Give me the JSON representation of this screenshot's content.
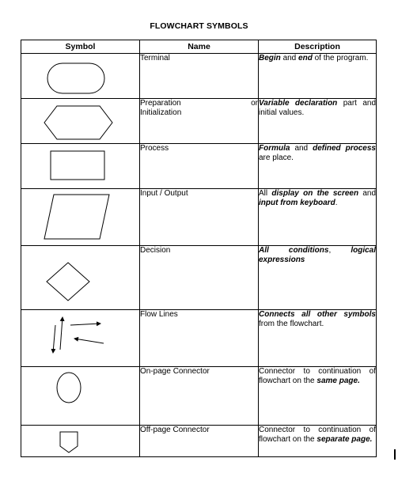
{
  "title": "FLOWCHART SYMBOLS",
  "columns": {
    "symbol": "Symbol",
    "name": "Name",
    "description": "Description"
  },
  "rows": [
    {
      "symbol_icon": "terminal-icon",
      "name": "Terminal",
      "description_parts": [
        {
          "text": "Begin",
          "em": true
        },
        {
          "text": " and ",
          "em": false
        },
        {
          "text": "end",
          "em": true
        },
        {
          "text": " of the program.",
          "em": false
        }
      ]
    },
    {
      "symbol_icon": "preparation-icon",
      "name_line1_left": "Preparation",
      "name_line1_right": "or",
      "name_line2": "Initialization",
      "description_parts": [
        {
          "text": "Variable declaration",
          "em": true
        },
        {
          "text": " part and initial values.",
          "em": false
        }
      ]
    },
    {
      "symbol_icon": "process-icon",
      "name": "Process",
      "description_parts": [
        {
          "text": "Formula",
          "em": true
        },
        {
          "text": " and ",
          "em": false
        },
        {
          "text": "defined process",
          "em": true
        },
        {
          "text": " are place.",
          "em": false
        }
      ]
    },
    {
      "symbol_icon": "input-output-icon",
      "name": "Input / Output",
      "description_parts": [
        {
          "text": "All ",
          "em": false
        },
        {
          "text": "display on the screen",
          "em": true
        },
        {
          "text": " and ",
          "em": false
        },
        {
          "text": "input from keyboard",
          "em": true
        },
        {
          "text": ".",
          "em": false
        }
      ]
    },
    {
      "symbol_icon": "decision-icon",
      "name": "Decision",
      "description_parts": [
        {
          "text": "All conditions",
          "em": true
        },
        {
          "text": ", ",
          "em": false
        },
        {
          "text": "logical expressions",
          "em": true
        }
      ]
    },
    {
      "symbol_icon": "flow-lines-icon",
      "name": "Flow Lines",
      "description_parts": [
        {
          "text": "Connects all other symbols",
          "em": true
        },
        {
          "text": " from the flowchart.",
          "em": false
        }
      ]
    },
    {
      "symbol_icon": "on-page-connector-icon",
      "name": "On-page Connector",
      "description_parts": [
        {
          "text": "Connector to continuation of flowchart on the ",
          "em": false
        },
        {
          "text": "same page.",
          "em": true
        }
      ]
    },
    {
      "symbol_icon": "off-page-connector-icon",
      "name": "Off-page Connector",
      "description_parts": [
        {
          "text": "Connector to continuation of flowchart on the ",
          "em": false
        },
        {
          "text": "separate page.",
          "em": true
        }
      ]
    }
  ],
  "d0": "Begin",
  "d1": "and",
  "d2": "end",
  "d3": "of the program.",
  "d4": "Variable declaration",
  "d5": "part and initial values.",
  "d6": "Formula",
  "d7": "defined process",
  "d8": "are place.",
  "d9": "All",
  "d10": "display on the screen",
  "d11": "input from keyboard",
  "d12": "All conditions",
  "d13": "logical expressions",
  "d14": "Connects all other symbols",
  "d15": "from the flowchart.",
  "d16": "Connector to continuation of flowchart on the",
  "d17": "same page.",
  "d18": "separate page.",
  "p1": ".",
  "p2": ","
}
